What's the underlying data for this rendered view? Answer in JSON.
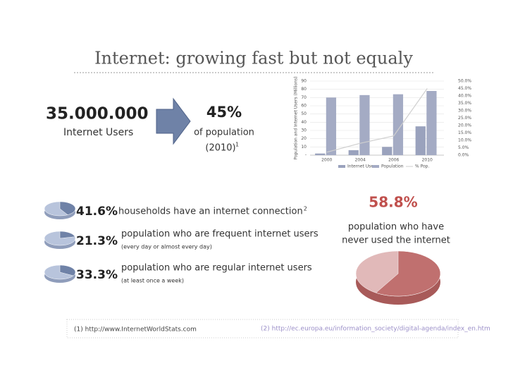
{
  "title": "Internet: growing fast but not equaly",
  "users": {
    "number": "35.000.000",
    "label": "Internet Users"
  },
  "share": {
    "value": "45%",
    "line1": "of population",
    "line2": "(2010)",
    "note": "1"
  },
  "chart_data": {
    "type": "bar",
    "y_label": "Population and Internet Users (Millions)",
    "categories": [
      "2000",
      "2004",
      "2006",
      "2010"
    ],
    "series": [
      {
        "name": "Internet Users",
        "color": "#9aa2bd",
        "values": [
          2,
          6,
          10,
          35
        ]
      },
      {
        "name": "Population",
        "color": "#a4abc4",
        "values": [
          70,
          73,
          74,
          78
        ]
      },
      {
        "name": "% Pop.",
        "color": "#cfcfcf",
        "axis": "y2",
        "type": "line",
        "values": [
          2,
          8,
          13,
          45
        ]
      }
    ],
    "ylim": [
      0,
      90
    ],
    "yticks": [
      {
        "value": 0,
        "label": "-"
      },
      10,
      20,
      30,
      40,
      50,
      60,
      70,
      80,
      90
    ],
    "y2lim": [
      0,
      50
    ],
    "y2ticks": [
      {
        "value": 0,
        "label": "0.0%"
      },
      {
        "value": 5,
        "label": "5.0%"
      },
      {
        "value": 10,
        "label": "10.0%"
      },
      {
        "value": 15,
        "label": "15.0%"
      },
      {
        "value": 20,
        "label": "20.0%"
      },
      {
        "value": 25,
        "label": "25.0%"
      },
      {
        "value": 30,
        "label": "30.0%"
      },
      {
        "value": 35,
        "label": "35.0%"
      },
      {
        "value": 40,
        "label": "40.0%"
      },
      {
        "value": 45,
        "label": "45.0%"
      },
      {
        "value": 50,
        "label": "50.0%"
      }
    ],
    "grid": true,
    "legend": "bottom"
  },
  "stats": [
    {
      "value": 41.6,
      "label": "41.6%",
      "text": "households have an internet connection",
      "note": "2"
    },
    {
      "value": 21.3,
      "label": "21.3%",
      "text": "population who are frequent internet users",
      "detail": "(every day or almost every day)"
    },
    {
      "value": 33.3,
      "label": "33.3%",
      "text": "population who are regular internet users",
      "detail": "(at least once a week)"
    }
  ],
  "never_used": {
    "value": 58.8,
    "label": "58.8%",
    "line1": "population who have",
    "line2": "never used the internet"
  },
  "footnotes": [
    "(1) http://www.InternetWorldStats.com",
    "(2) http://ec.europa.eu/information_society/digital-agenda/index_en.htm"
  ]
}
